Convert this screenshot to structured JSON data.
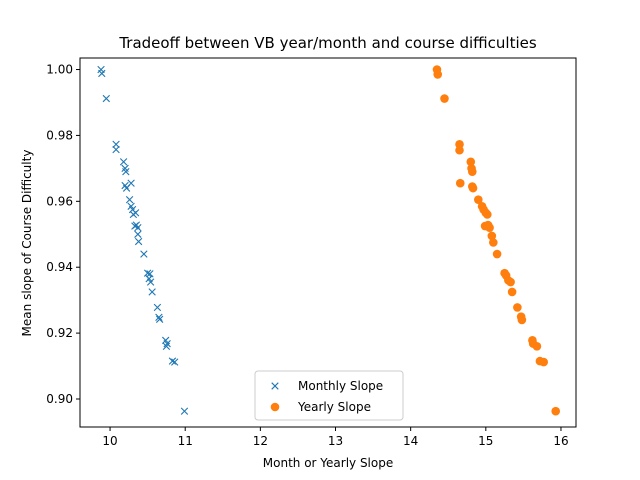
{
  "chart_data": {
    "type": "scatter",
    "title": "Tradeoff between VB year/month and course difficulties",
    "xlabel": "Month or Yearly Slope",
    "ylabel": "Mean slope of Course Difficulty",
    "xlim": [
      9.6,
      16.2
    ],
    "ylim": [
      0.8915,
      1.0035
    ],
    "xticks": [
      10,
      11,
      12,
      13,
      14,
      15,
      16
    ],
    "yticks": [
      0.9,
      0.92,
      0.94,
      0.96,
      0.98,
      1.0
    ],
    "xtick_labels": [
      "10",
      "11",
      "12",
      "13",
      "14",
      "15",
      "16"
    ],
    "ytick_labels": [
      "0.90",
      "0.92",
      "0.94",
      "0.96",
      "0.98",
      "1.00"
    ],
    "grid": false,
    "legend_position": "lower-center",
    "series": [
      {
        "name": "Monthly Slope",
        "marker": "x",
        "color": "#1f77b4",
        "points": [
          [
            9.88,
            1.0
          ],
          [
            9.89,
            0.9988
          ],
          [
            9.95,
            0.9912
          ],
          [
            10.08,
            0.9773
          ],
          [
            10.08,
            0.9757
          ],
          [
            10.18,
            0.972
          ],
          [
            10.2,
            0.97
          ],
          [
            10.21,
            0.969
          ],
          [
            10.2,
            0.9648
          ],
          [
            10.22,
            0.964
          ],
          [
            10.28,
            0.9655
          ],
          [
            10.26,
            0.9605
          ],
          [
            10.28,
            0.9585
          ],
          [
            10.3,
            0.9575
          ],
          [
            10.31,
            0.956
          ],
          [
            10.34,
            0.9565
          ],
          [
            10.33,
            0.9525
          ],
          [
            10.35,
            0.9528
          ],
          [
            10.37,
            0.952
          ],
          [
            10.37,
            0.95
          ],
          [
            10.38,
            0.9478
          ],
          [
            10.45,
            0.944
          ],
          [
            10.5,
            0.9382
          ],
          [
            10.53,
            0.938
          ],
          [
            10.52,
            0.9365
          ],
          [
            10.54,
            0.9355
          ],
          [
            10.56,
            0.9325
          ],
          [
            10.63,
            0.9278
          ],
          [
            10.65,
            0.9248
          ],
          [
            10.66,
            0.9242
          ],
          [
            10.74,
            0.9178
          ],
          [
            10.76,
            0.9168
          ],
          [
            10.75,
            0.916
          ],
          [
            10.83,
            0.9115
          ],
          [
            10.86,
            0.9112
          ],
          [
            10.99,
            0.8963
          ]
        ]
      },
      {
        "name": "Yearly Slope",
        "marker": "o",
        "color": "#ff7f0e",
        "points": [
          [
            14.35,
            1.0
          ],
          [
            14.36,
            0.9985
          ],
          [
            14.45,
            0.9912
          ],
          [
            14.65,
            0.9773
          ],
          [
            14.65,
            0.9755
          ],
          [
            14.66,
            0.9655
          ],
          [
            14.8,
            0.972
          ],
          [
            14.81,
            0.97
          ],
          [
            14.82,
            0.969
          ],
          [
            14.82,
            0.9645
          ],
          [
            14.83,
            0.964
          ],
          [
            14.9,
            0.9605
          ],
          [
            14.95,
            0.9585
          ],
          [
            14.97,
            0.9575
          ],
          [
            15.0,
            0.9565
          ],
          [
            15.02,
            0.956
          ],
          [
            14.99,
            0.9525
          ],
          [
            15.03,
            0.9528
          ],
          [
            15.05,
            0.952
          ],
          [
            15.08,
            0.9495
          ],
          [
            15.1,
            0.9475
          ],
          [
            15.15,
            0.944
          ],
          [
            15.25,
            0.9382
          ],
          [
            15.27,
            0.9375
          ],
          [
            15.3,
            0.936
          ],
          [
            15.33,
            0.9355
          ],
          [
            15.35,
            0.9325
          ],
          [
            15.42,
            0.9278
          ],
          [
            15.47,
            0.925
          ],
          [
            15.48,
            0.924
          ],
          [
            15.62,
            0.9178
          ],
          [
            15.63,
            0.9168
          ],
          [
            15.68,
            0.916
          ],
          [
            15.72,
            0.9115
          ],
          [
            15.77,
            0.9112
          ],
          [
            15.93,
            0.8963
          ]
        ]
      }
    ]
  }
}
